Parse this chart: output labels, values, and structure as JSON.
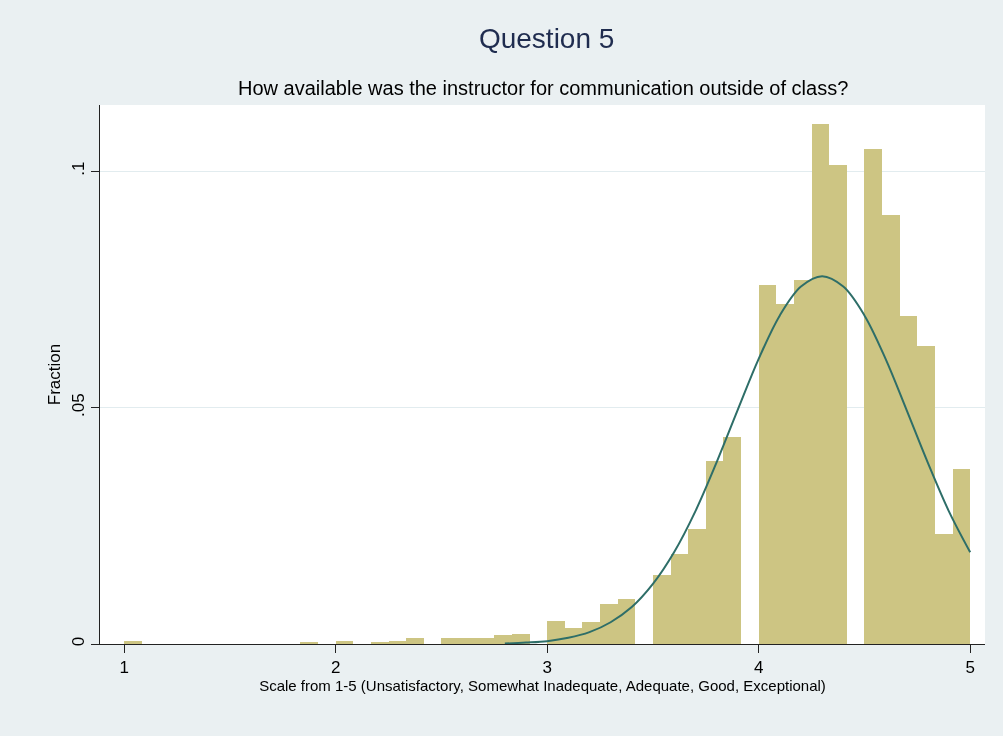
{
  "chart_data": {
    "type": "histogram",
    "title": "Question 5",
    "subtitle": "How available was the instructor for communication outside of class?",
    "xlabel": "Scale from 1-5 (Unsatisfactory, Somewhat Inadequate, Adequate, Good, Exceptional)",
    "ylabel": "Fraction",
    "xlim": [
      0.886,
      5.07
    ],
    "ylim": [
      0,
      0.114
    ],
    "xticks": [
      1,
      2,
      3,
      4,
      5
    ],
    "yticks": [
      0,
      {
        "value": 0.05,
        "label": ".05"
      },
      {
        "value": 0.1,
        "label": ".1"
      }
    ],
    "grid": "y",
    "series": [
      {
        "color": "#cdc583",
        "bins": [
          1,
          1.0833,
          1.1667,
          1.25,
          1.3333,
          1.4167,
          1.5,
          1.5833,
          1.6667,
          1.75,
          1.8333,
          1.9167,
          2,
          2.0833,
          2.1667,
          2.25,
          2.3333,
          2.4167,
          2.5,
          2.5833,
          2.6667,
          2.75,
          2.8333,
          2.9167,
          3,
          3.0833,
          3.1667,
          3.25,
          3.3333,
          3.4167,
          3.5,
          3.5833,
          3.6667,
          3.75,
          3.8333,
          3.9167,
          4,
          4.0833,
          4.1667,
          4.25,
          4.3333,
          4.4167,
          4.5,
          4.5833,
          4.6667,
          4.75,
          4.8333,
          4.9167,
          5
        ],
        "values": [
          0.0007,
          0,
          0,
          0,
          0,
          0,
          0,
          0,
          0,
          0,
          0.0003,
          0,
          0.0007,
          0,
          0.0003,
          0.0007,
          0.0012,
          0,
          0.0012,
          0.0012,
          0.0012,
          0.0019,
          0.0021,
          0,
          0.0049,
          0.0033,
          0.0046,
          0.0084,
          0.0095,
          0,
          0.0145,
          0.019,
          0.0244,
          0.0388,
          0.0438,
          0,
          0.0759,
          0.0719,
          0.0769,
          0.11,
          0.1013,
          0,
          0.1048,
          0.0907,
          0.0694,
          0.063,
          0.0232,
          0.0371
        ]
      },
      {
        "type": "line",
        "color": "#2e6e68",
        "x": [
          2.8,
          2.9,
          3.0,
          3.1,
          3.2,
          3.3,
          3.4,
          3.5,
          3.6,
          3.7,
          3.8,
          3.9,
          4.0,
          4.1,
          4.2,
          4.3,
          4.4,
          4.5,
          4.6,
          4.7,
          4.8,
          4.9,
          5.0
        ],
        "values": [
          0.0001,
          0.0003,
          0.0006,
          0.0013,
          0.0025,
          0.0046,
          0.0078,
          0.0127,
          0.0194,
          0.028,
          0.0383,
          0.0494,
          0.0603,
          0.0695,
          0.0756,
          0.0778,
          0.0756,
          0.0695,
          0.0603,
          0.0494,
          0.0383,
          0.028,
          0.0194
        ]
      }
    ]
  }
}
